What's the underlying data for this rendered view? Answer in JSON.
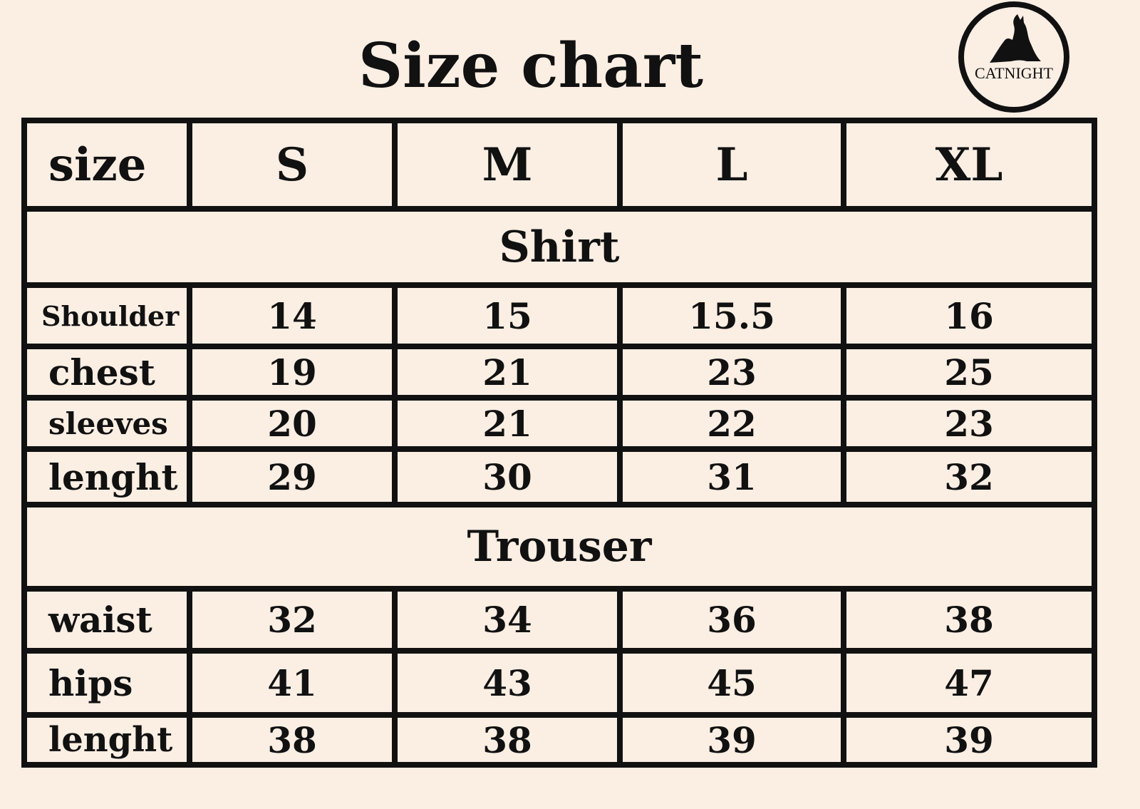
{
  "title": "Size chart",
  "logo": {
    "text": "CATNIGHT",
    "icon": "seated-cat-woman-silhouette"
  },
  "header": {
    "label": "size",
    "sizes": [
      "S",
      "M",
      "L",
      "XL"
    ]
  },
  "sections": [
    {
      "title": "Shirt",
      "rows": [
        {
          "label": "Shoulder",
          "values": [
            "14",
            "15",
            "15.5",
            "16"
          ]
        },
        {
          "label": "chest",
          "values": [
            "19",
            "21",
            "23",
            "25"
          ]
        },
        {
          "label": "sleeves",
          "values": [
            "20",
            "21",
            "22",
            "23"
          ]
        },
        {
          "label": "lenght",
          "values": [
            "29",
            "30",
            "31",
            "32"
          ]
        }
      ]
    },
    {
      "title": "Trouser",
      "rows": [
        {
          "label": "waist",
          "values": [
            "32",
            "34",
            "36",
            "38"
          ]
        },
        {
          "label": "hips",
          "values": [
            "41",
            "43",
            "45",
            "47"
          ]
        },
        {
          "label": "lenght",
          "values": [
            "38",
            "38",
            "39",
            "39"
          ]
        }
      ]
    }
  ]
}
